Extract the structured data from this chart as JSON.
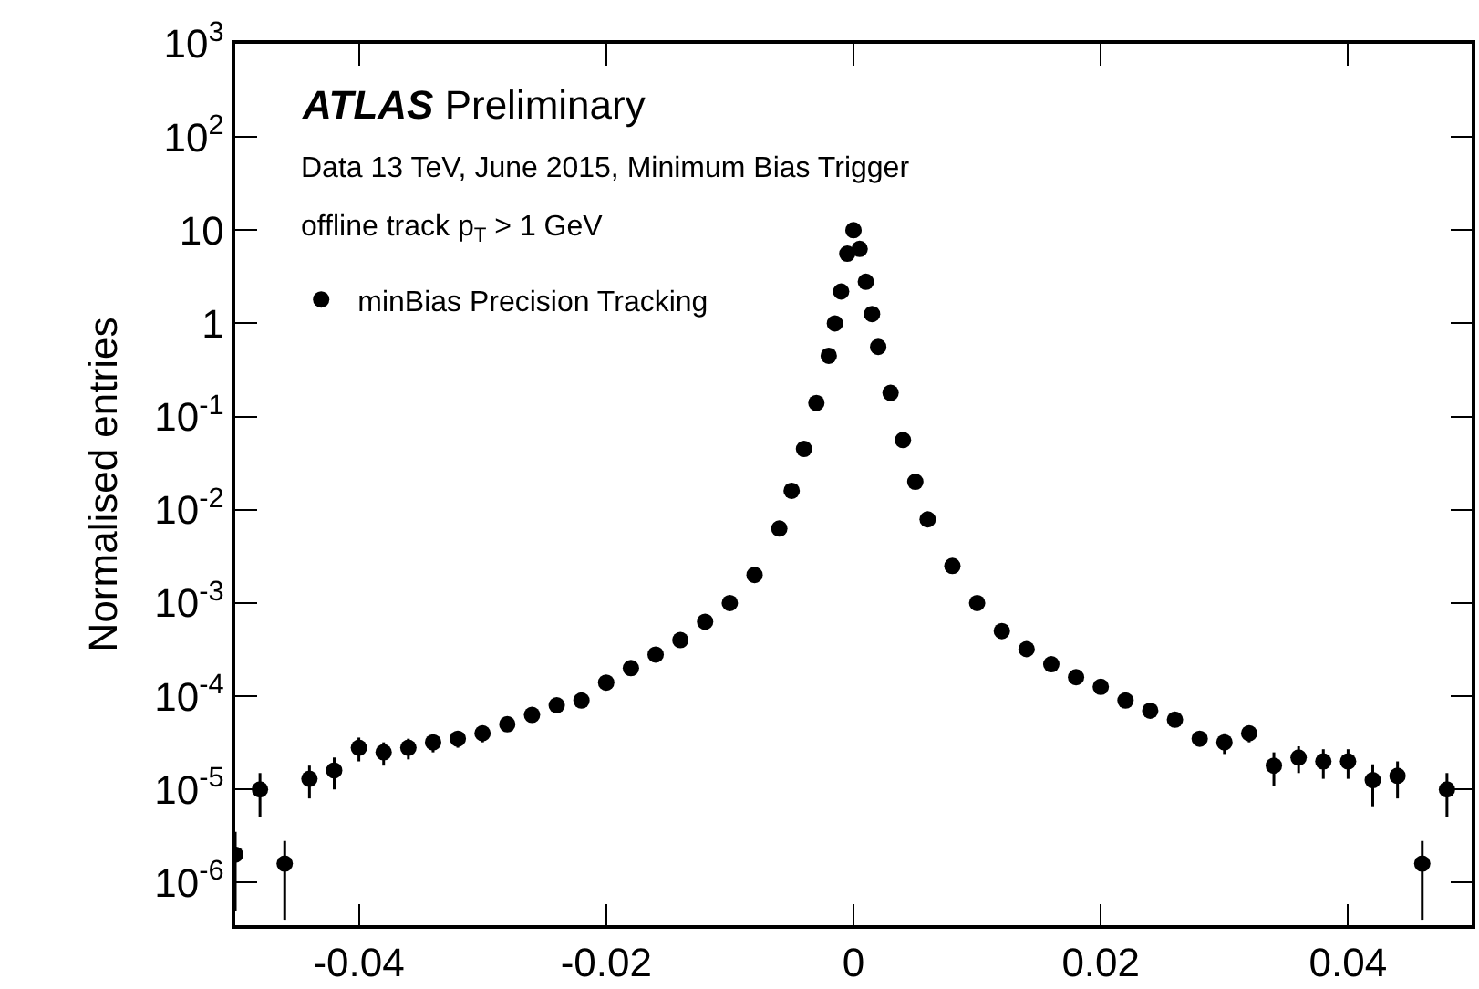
{
  "chart_data": {
    "type": "scatter",
    "ylabel": "Normalised entries",
    "annotations": [
      "ATLAS Preliminary",
      "Data 13 TeV, June 2015, Minimum Bias Trigger",
      "offline track p$_{T}$ > 1 GeV"
    ],
    "x": [
      -0.05,
      -0.048,
      -0.046,
      -0.044,
      -0.042,
      -0.04,
      -0.038,
      -0.036,
      -0.034,
      -0.032,
      -0.03,
      -0.028,
      -0.026,
      -0.024,
      -0.022,
      -0.02,
      -0.018,
      -0.016,
      -0.014,
      -0.012,
      -0.01,
      -0.008,
      -0.006,
      -0.005,
      -0.004,
      -0.003,
      -0.002,
      -0.0015,
      -0.001,
      -0.0005,
      0,
      0.0005,
      0.001,
      0.0015,
      0.002,
      0.003,
      0.004,
      0.005,
      0.006,
      0.008,
      0.01,
      0.012,
      0.014,
      0.016,
      0.018,
      0.02,
      0.022,
      0.024,
      0.026,
      0.028,
      0.03,
      0.032,
      0.034,
      0.036,
      0.038,
      0.04,
      0.042,
      0.044,
      0.046,
      0.048
    ],
    "series": [
      {
        "name": "minBias Precision Tracking",
        "color": "#000000",
        "values": [
          2e-06,
          1e-05,
          1.6e-06,
          1.3e-05,
          1.6e-05,
          2.8e-05,
          2.5e-05,
          2.8e-05,
          3.2e-05,
          3.5e-05,
          4e-05,
          5e-05,
          6.3e-05,
          8e-05,
          9e-05,
          0.00014,
          0.0002,
          0.00028,
          0.0004,
          0.00063,
          0.001,
          0.002,
          0.0063,
          0.016,
          0.045,
          0.14,
          0.45,
          1,
          2.2,
          5.6,
          10,
          6.3,
          2.8,
          1.26,
          0.56,
          0.18,
          0.056,
          0.02,
          0.0079,
          0.0025,
          0.001,
          0.0005,
          0.00032,
          0.00022,
          0.00016,
          0.000126,
          9e-05,
          7e-05,
          5.6e-05,
          3.5e-05,
          3.2e-05,
          4e-05,
          1.8e-05,
          2.2e-05,
          2e-05,
          2e-05,
          1.26e-05,
          1.4e-05,
          1.6e-06,
          1e-05
        ],
        "errors": [
          1.5e-06,
          5e-06,
          1.2e-06,
          5e-06,
          6e-06,
          8e-06,
          7e-06,
          7e-06,
          7e-06,
          7e-06,
          8e-06,
          null,
          null,
          null,
          null,
          null,
          null,
          null,
          null,
          null,
          null,
          null,
          null,
          null,
          null,
          null,
          null,
          null,
          null,
          null,
          null,
          null,
          null,
          null,
          null,
          null,
          null,
          null,
          null,
          null,
          null,
          null,
          null,
          null,
          null,
          null,
          null,
          null,
          null,
          null,
          8e-06,
          8e-06,
          7e-06,
          7e-06,
          7e-06,
          7e-06,
          6e-06,
          6e-06,
          1.2e-06,
          5e-06
        ]
      }
    ],
    "marker": "circle",
    "log": "y",
    "xlim": [
      -0.05,
      0.05
    ],
    "xticks": [
      -0.04,
      -0.02,
      0,
      0.02,
      0.04
    ],
    "ylim": [
      3.5e-07,
      1000
    ],
    "yticks": [
      {
        "value": 1e-06,
        "label": "10$^{-6}$"
      },
      {
        "value": 1e-05,
        "label": "10$^{-5}$"
      },
      {
        "value": 0.0001,
        "label": "10$^{-4}$"
      },
      {
        "value": 0.001,
        "label": "10$^{-3}$"
      },
      {
        "value": 0.01,
        "label": "10$^{-2}$"
      },
      {
        "value": 0.1,
        "label": "10$^{-1}$"
      },
      1,
      10,
      {
        "value": 100,
        "label": "10$^{2}$"
      },
      {
        "value": 1000,
        "label": "10$^{3}$"
      }
    ],
    "legend": "top left"
  }
}
